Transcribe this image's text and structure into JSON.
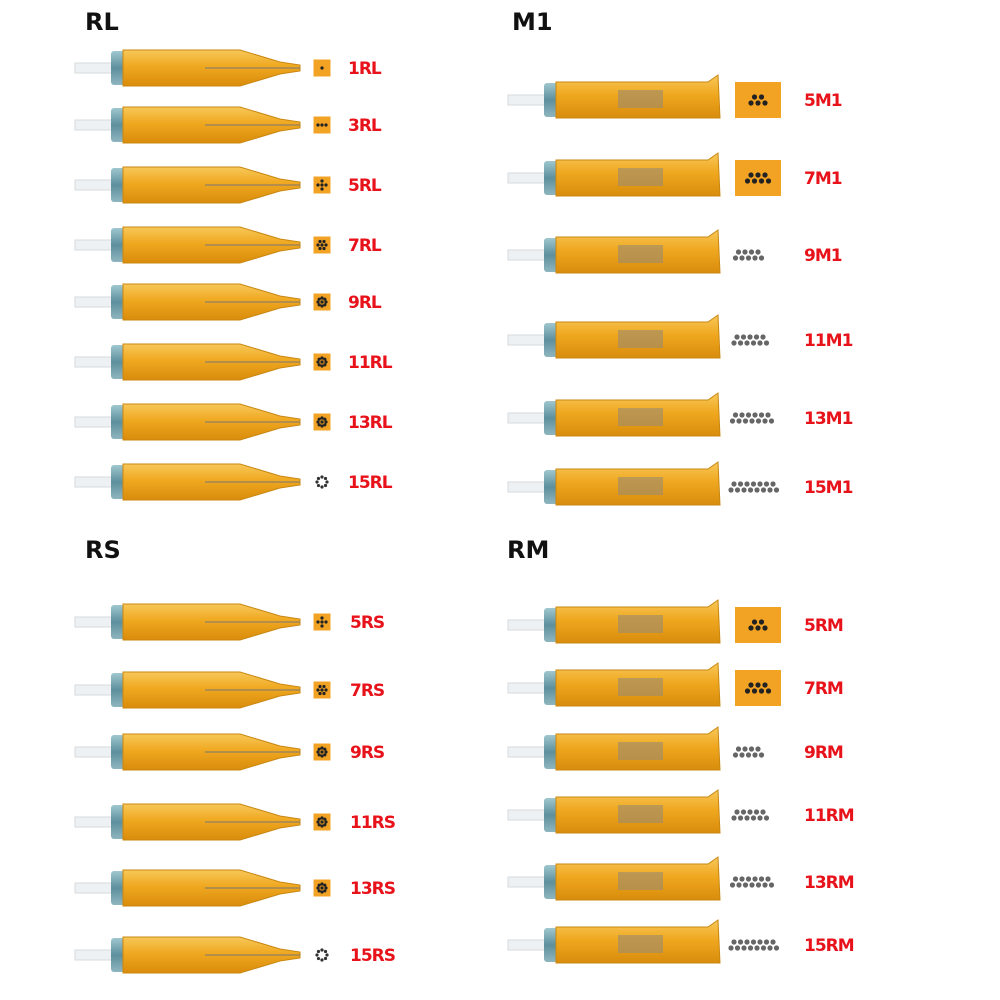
{
  "sections": [
    {
      "title": "RL",
      "items": [
        "1RL",
        "3RL",
        "5RL",
        "7RL",
        "9RL",
        "11RL",
        "13RL",
        "15RL"
      ]
    },
    {
      "title": "M1",
      "items": [
        "5M1",
        "7M1",
        "9M1",
        "11M1",
        "13M1",
        "15M1"
      ]
    },
    {
      "title": "RS",
      "items": [
        "5RS",
        "7RS",
        "9RS",
        "11RS",
        "13RS",
        "15RS"
      ]
    },
    {
      "title": "RM",
      "items": [
        "5RM",
        "7RM",
        "9RM",
        "11RM",
        "13RM",
        "15RM"
      ]
    }
  ]
}
